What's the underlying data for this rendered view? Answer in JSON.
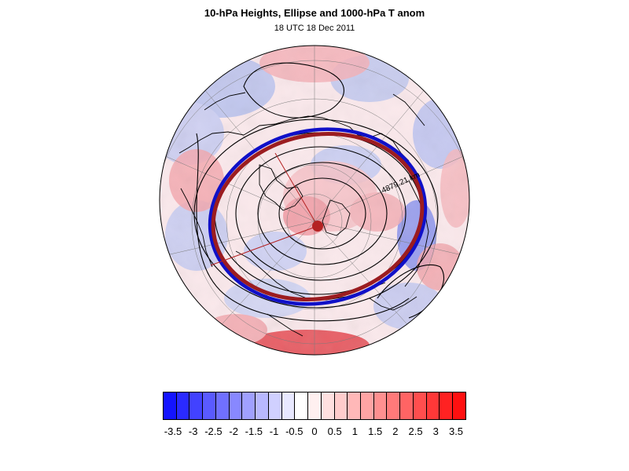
{
  "title": "10-hPa Heights, Ellipse and 1000-hPa T anom",
  "subtitle": "18 UTC 18 Dec 2011",
  "map": {
    "projection": "polar-stereographic-north",
    "ellipse_label": "4879.21 km",
    "ellipse_outer_color": "#9b1c20",
    "ellipse_inner_color": "#1010c8",
    "center_dot_color": "#b42222"
  },
  "colorbar": {
    "colors": [
      "#1414ff",
      "#2a2aff",
      "#4242ff",
      "#5a5aff",
      "#7070ff",
      "#8888ff",
      "#a0a0ff",
      "#b8b8ff",
      "#d0d0ff",
      "#e8e8ff",
      "#ffffff",
      "#fff0f0",
      "#ffe0e0",
      "#ffcccc",
      "#ffb8b8",
      "#ffa4a4",
      "#ff9090",
      "#ff7a7a",
      "#ff6464",
      "#ff4e4e",
      "#ff3838",
      "#ff2222",
      "#ff1010"
    ],
    "labels": [
      "-3.5",
      "-3",
      "-2.5",
      "-2",
      "-1.5",
      "-1",
      "-0.5",
      "0",
      "0.5",
      "1",
      "1.5",
      "2",
      "2.5",
      "3",
      "3.5"
    ]
  }
}
